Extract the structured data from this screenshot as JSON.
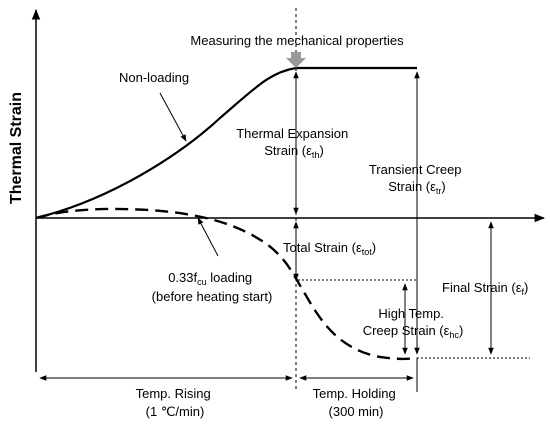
{
  "y_axis_label": "Thermal Strain",
  "measuring_label": "Measuring the mechanical properties",
  "non_loading_label": "Non-loading",
  "thermal_expansion": {
    "line1": "Thermal Expansion",
    "line2_prefix": "Strain (ε",
    "line2_sub": "th",
    "line2_suffix": ")"
  },
  "transient_creep": {
    "line1": "Transient Creep",
    "line2_prefix": "Strain (ε",
    "line2_sub": "tr",
    "line2_suffix": ")"
  },
  "total_strain": {
    "prefix": "Total Strain (ε",
    "sub": "tot",
    "suffix": ")"
  },
  "final_strain": {
    "prefix": "Final Strain (ε",
    "sub": "f",
    "suffix": ")"
  },
  "loading_label": {
    "prefix": "0.33f",
    "sub": "cu",
    "suffix": " loading",
    "line2": "(before heating start)"
  },
  "high_temp_creep": {
    "line1": "High Temp.",
    "line2_prefix": "Creep Strain (ε",
    "line2_sub": "hc",
    "line2_suffix": ")"
  },
  "temp_rising": {
    "line1": "Temp. Rising",
    "line2": "(1 ℃/min)"
  },
  "temp_holding": {
    "line1": "Temp. Holding",
    "line2": "(300 min)"
  },
  "colors": {
    "line": "#000000",
    "arrow_marker": "#999999"
  }
}
